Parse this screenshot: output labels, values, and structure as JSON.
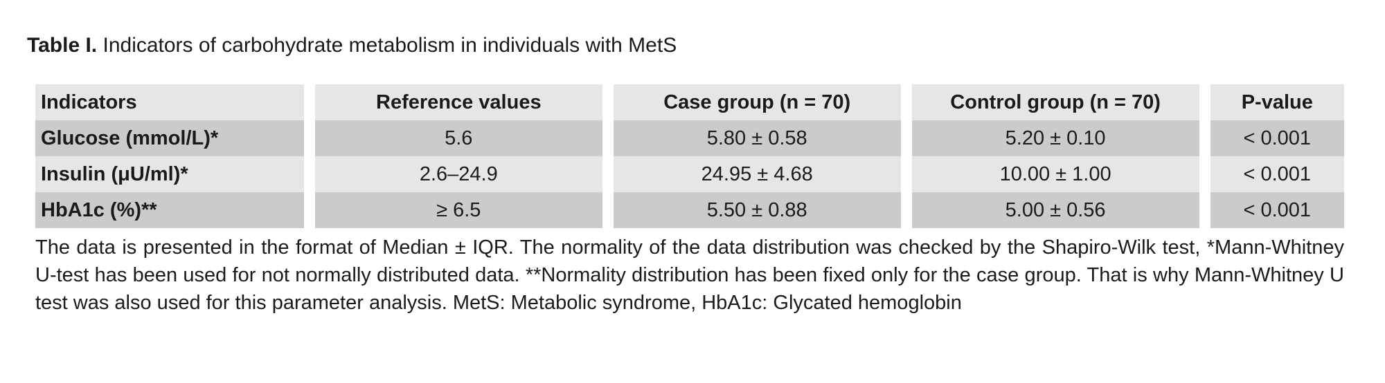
{
  "caption": {
    "label": "Table I.",
    "title": "Indicators of carbohydrate metabolism in individuals with MetS"
  },
  "table": {
    "headers": [
      "Indicators",
      "Reference values",
      "Case group (n = 70)",
      "Control group (n = 70)",
      "P-value"
    ],
    "rows": [
      [
        "Glucose (mmol/L)*",
        "5.6",
        "5.80 ± 0.58",
        "5.20 ± 0.10",
        "< 0.001"
      ],
      [
        "Insulin (μU/ml)*",
        "2.6–24.9",
        "24.95 ± 4.68",
        "10.00 ± 1.00",
        "< 0.001"
      ],
      [
        "HbA1c (%)**",
        "≥ 6.5",
        "5.50 ± 0.88",
        "5.00 ± 0.56",
        "< 0.001"
      ]
    ]
  },
  "footnote": "The data is presented in the format of Median ± IQR. The normality of the data distribution was checked by the Shapiro-Wilk test, *Mann-Whitney U-test has been used for not normally distributed data. **Normality distribution has been fixed only for the case group. That is why Mann-Whitney U test was also used for this parameter analysis. MetS: Metabolic syndrome, HbA1c: Glycated hemoglobin"
}
